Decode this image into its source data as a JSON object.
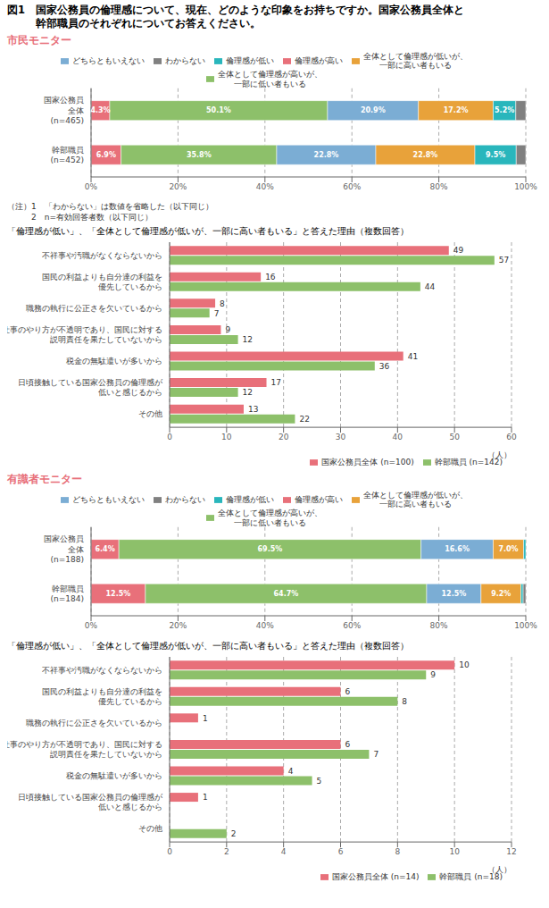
{
  "title": "図1",
  "subtitle": "国家公務員の倫理感について、現在、どのような印象をお持ちですか。国家公務員全体と\n幹部職員のそれぞれについてお答えください。",
  "chart_data": [
    {
      "type": "bar",
      "title": "市民モニター",
      "orientation": "horizontal",
      "stacked": true,
      "categories": [
        "国家公務員\n全体\n(n=465)",
        "幹部職員\n(n=452)"
      ],
      "series": [
        {
          "name": "倫理感が高い",
          "color": "#e8707a",
          "values": [
            4.3,
            6.9
          ],
          "value_labels": [
            "4.3%",
            "6.9%"
          ]
        },
        {
          "name": "全体として倫理感が高いが、\n一部に低い者もいる",
          "color": "#8dc06a",
          "values": [
            50.1,
            35.8
          ],
          "value_labels": [
            "50.1%",
            "35.8%"
          ]
        },
        {
          "name": "どちらともいえない",
          "color": "#7badd4",
          "values": [
            20.9,
            22.8
          ],
          "value_labels": [
            "20.9%",
            "22.8%"
          ]
        },
        {
          "name": "全体として倫理感が低いが、\n一部に高い者もいる",
          "color": "#e8a23a",
          "values": [
            17.2,
            22.8
          ],
          "value_labels": [
            "17.2%",
            "22.8%"
          ]
        },
        {
          "name": "倫理感が低い",
          "color": "#29b6bc",
          "values": [
            5.2,
            9.5
          ],
          "value_labels": [
            "5.2%",
            "9.5%"
          ]
        },
        {
          "name": "わからない",
          "color": "#808080",
          "values": [
            2.3,
            2.2
          ]
        }
      ],
      "xlim": [
        0,
        100
      ],
      "xticks": [
        {
          "value": 0,
          "label": "0%"
        },
        {
          "value": 20,
          "label": "20%"
        },
        {
          "value": 40,
          "label": "40%"
        },
        {
          "value": 60,
          "label": "60%"
        },
        {
          "value": 80,
          "label": "80%"
        },
        {
          "value": 100,
          "label": "100%"
        }
      ],
      "grid": true,
      "legend": "top",
      "annotations": [
        "（注）1　「わからない」は数値を省略した（以下同じ）",
        "　　　2　n=有効回答者数（以下同じ）"
      ]
    },
    {
      "type": "bar",
      "title": "「倫理感が低い」、「全体として倫理感が低いが、一部に高い者もいる」と答えた理由（複数回答）",
      "orientation": "horizontal",
      "categories": [
        "不祥事や汚職がなくならないから",
        "国民の利益よりも自分達の利益を\n優先しているから",
        "職務の執行に公正さを欠いているから",
        "仕事のやり方が不透明であり、国民に対する\n説明責任を果たしていないから",
        "税金の無駄遣いが多いから",
        "日頃接触している国家公務員の倫理感が\n低いと感じるから",
        "その他"
      ],
      "series": [
        {
          "name": "国家公務員全体 (n=100)",
          "color": "#e8707a",
          "values": [
            49,
            16,
            8,
            9,
            41,
            17,
            13
          ]
        },
        {
          "name": "幹部職員 (n=142)",
          "color": "#8dc06a",
          "values": [
            57,
            44,
            7,
            12,
            36,
            12,
            22
          ]
        }
      ],
      "xlim": [
        0,
        60
      ],
      "xticks": [
        0,
        10,
        20,
        30,
        40,
        50,
        60
      ],
      "xlabel": "（人）",
      "grid": true,
      "legend": "lower right",
      "data_labels": true
    },
    {
      "type": "bar",
      "title": "有識者モニター",
      "orientation": "horizontal",
      "stacked": true,
      "categories": [
        "国家公務員\n全体\n(n=188)",
        "幹部職員\n(n=184)"
      ],
      "series": [
        {
          "name": "倫理感が高い",
          "color": "#e8707a",
          "values": [
            6.4,
            12.5
          ],
          "value_labels": [
            "6.4%",
            "12.5%"
          ]
        },
        {
          "name": "全体として倫理感が高いが、\n一部に低い者もいる",
          "color": "#8dc06a",
          "values": [
            69.5,
            64.7
          ],
          "value_labels": [
            "69.5%",
            "64.7%"
          ]
        },
        {
          "name": "どちらともいえない",
          "color": "#7badd4",
          "values": [
            16.6,
            12.5
          ],
          "value_labels": [
            "16.6%",
            "12.5%"
          ]
        },
        {
          "name": "全体として倫理感が低いが、\n一部に高い者もいる",
          "color": "#e8a23a",
          "values": [
            7.0,
            9.2
          ],
          "value_labels": [
            "7.0%",
            "9.2%"
          ]
        },
        {
          "name": "倫理感が低い",
          "color": "#29b6bc",
          "values": [
            0.5,
            0.5
          ]
        },
        {
          "name": "わからない",
          "color": "#808080",
          "values": [
            0.0,
            0.6
          ]
        }
      ],
      "xlim": [
        0,
        100
      ],
      "xticks": [
        {
          "value": 0,
          "label": "0%"
        },
        {
          "value": 20,
          "label": "20%"
        },
        {
          "value": 40,
          "label": "40%"
        },
        {
          "value": 60,
          "label": "60%"
        },
        {
          "value": 80,
          "label": "80%"
        },
        {
          "value": 100,
          "label": "100%"
        }
      ],
      "grid": true,
      "legend": "top"
    },
    {
      "type": "bar",
      "title": "「倫理感が低い」、「全体として倫理感が低いが、一部に高い者もいる」と答えた理由（複数回答）",
      "orientation": "horizontal",
      "categories": [
        "不祥事や汚職がなくならないから",
        "国民の利益よりも自分達の利益を\n優先しているから",
        "職務の執行に公正さを欠いているから",
        "仕事のやり方が不透明であり、国民に対する\n説明責任を果たしていないから",
        "税金の無駄遣いが多いから",
        "日頃接触している国家公務員の倫理感が\n低いと感じるから",
        "その他"
      ],
      "series": [
        {
          "name": "国家公務員全体 (n=14)",
          "color": "#e8707a",
          "values": [
            10,
            6,
            1,
            6,
            4,
            1,
            0
          ]
        },
        {
          "name": "幹部職員 (n=18)",
          "color": "#8dc06a",
          "values": [
            9,
            8,
            0,
            7,
            5,
            0,
            2
          ],
          "value_labels": [
            "9",
            "8",
            null,
            "7",
            "5",
            null,
            "2"
          ]
        }
      ],
      "xlim": [
        0,
        12
      ],
      "xticks": [
        0,
        2,
        4,
        6,
        8,
        10,
        12
      ],
      "xlabel": "（人）",
      "grid": true,
      "legend": "lower right",
      "data_labels": true
    }
  ]
}
